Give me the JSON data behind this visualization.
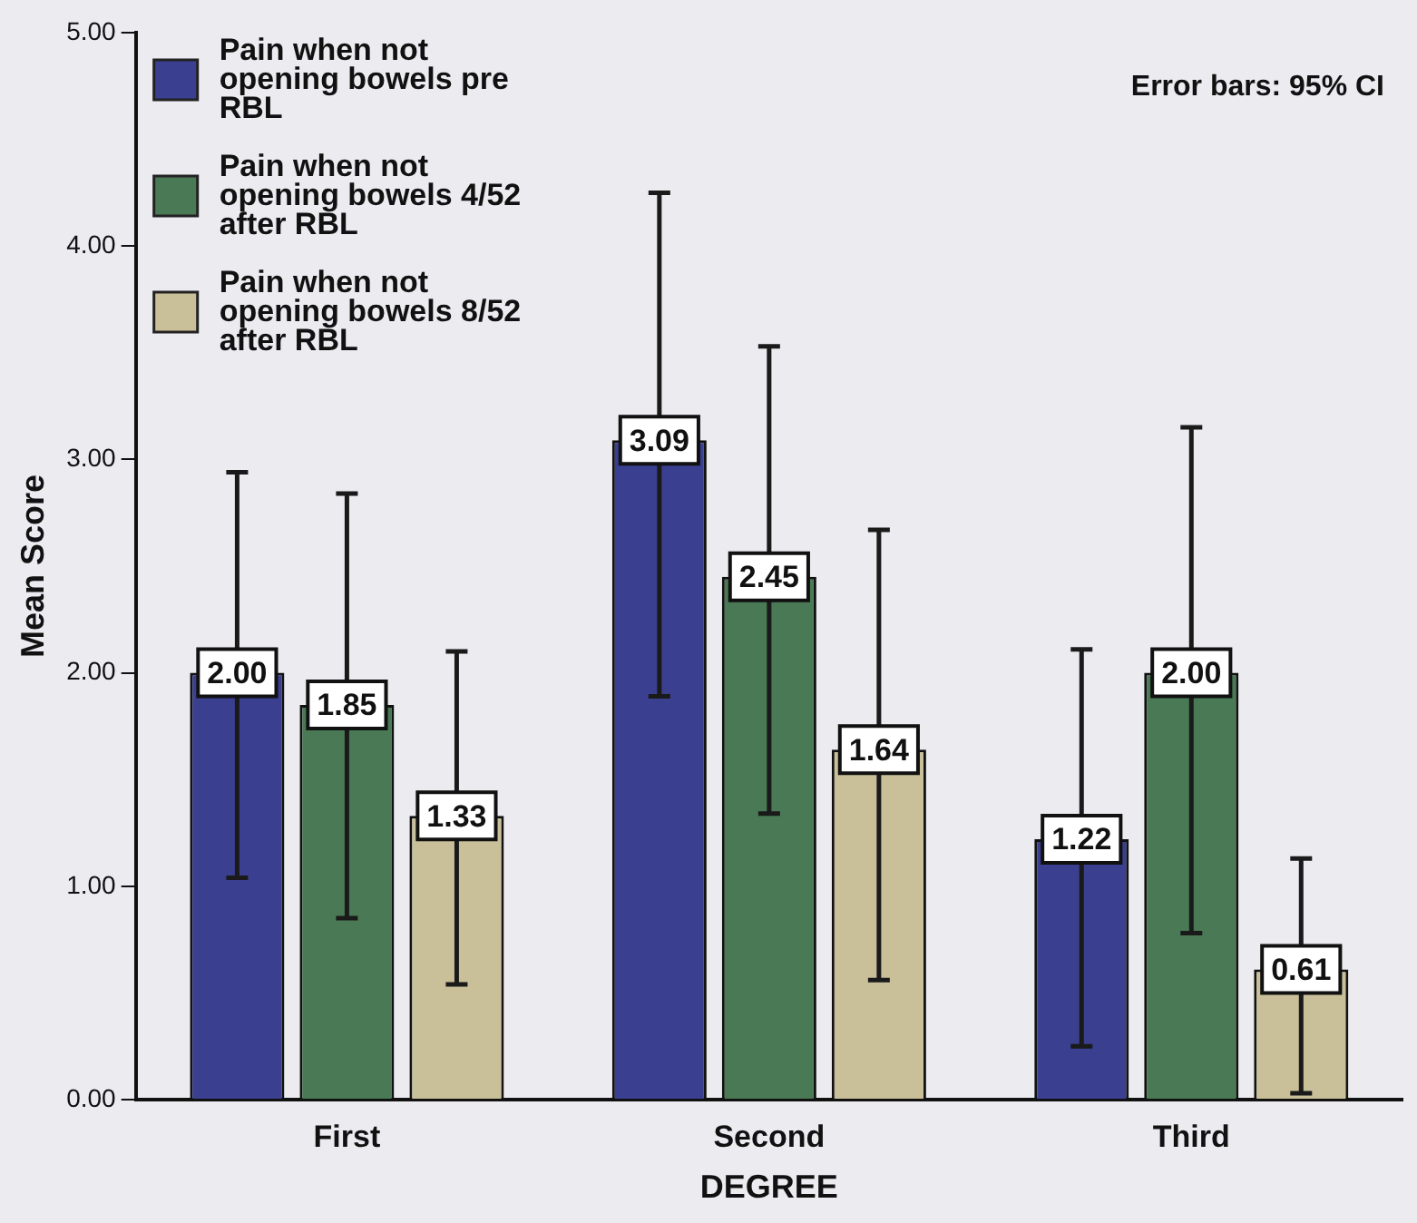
{
  "chart_data": {
    "type": "bar",
    "xlabel": "DEGREE",
    "ylabel": "Mean Score",
    "categories": [
      "First",
      "Second",
      "Third"
    ],
    "series": [
      {
        "name": "Pain when not opening bowels pre RBL",
        "color": "#3a3f8f",
        "values": [
          2.0,
          3.09,
          1.22
        ],
        "value_labels": [
          "2.00",
          "3.09",
          "1.22"
        ],
        "errors": [
          [
            1.04,
            2.94
          ],
          [
            1.89,
            4.25
          ],
          [
            0.25,
            2.11
          ]
        ]
      },
      {
        "name": "Pain when not opening bowels 4/52 after RBL",
        "color": "#4a7a55",
        "values": [
          1.85,
          2.45,
          2.0
        ],
        "value_labels": [
          "1.85",
          "2.45",
          "2.00"
        ],
        "errors": [
          [
            0.85,
            2.84
          ],
          [
            1.34,
            3.53
          ],
          [
            0.78,
            3.15
          ]
        ]
      },
      {
        "name": "Pain when not opening bowels 8/52 after RBL",
        "color": "#c9c09a",
        "values": [
          1.33,
          1.64,
          0.61
        ],
        "value_labels": [
          "1.33",
          "1.64",
          "0.61"
        ],
        "errors": [
          [
            0.54,
            2.1
          ],
          [
            0.56,
            2.67
          ],
          [
            0.03,
            1.13
          ]
        ]
      }
    ],
    "ylim": [
      0,
      5
    ],
    "yticks": [
      {
        "value": 0,
        "label": "0.00"
      },
      {
        "value": 1,
        "label": "1.00"
      },
      {
        "value": 2,
        "label": "2.00"
      },
      {
        "value": 3,
        "label": "3.00"
      },
      {
        "value": 4,
        "label": "4.00"
      },
      {
        "value": 5,
        "label": "5.00"
      }
    ],
    "grid": false,
    "legend": "top left",
    "annotations": [
      "Error bars: 95% CI"
    ]
  }
}
